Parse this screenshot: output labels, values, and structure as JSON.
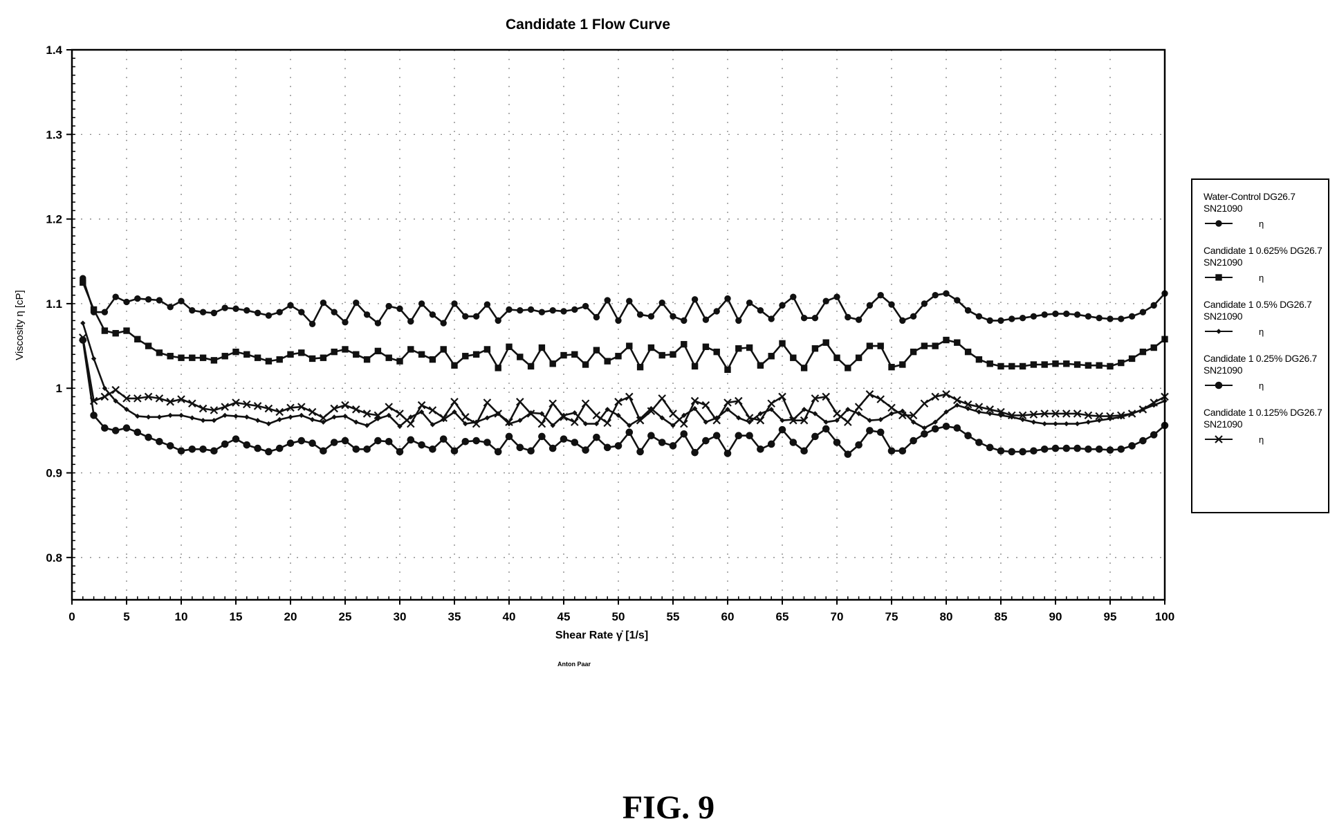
{
  "figure": {
    "label": "FIG. 9",
    "credit": "Anton Paar"
  },
  "chart_data": {
    "type": "line",
    "title": "Candidate 1 Flow Curve",
    "xlabel": "Shear Rate γ̇ [1/s]",
    "ylabel": "Viscosity η [cP]",
    "xlim": [
      0,
      100
    ],
    "ylim": [
      0.75,
      1.4
    ],
    "xticks": [
      0,
      5,
      10,
      15,
      20,
      25,
      30,
      35,
      40,
      45,
      50,
      55,
      60,
      65,
      70,
      75,
      80,
      85,
      90,
      95,
      100
    ],
    "yticks": [
      0.8,
      0.9,
      1,
      1.1,
      1.2,
      1.3,
      1.4
    ],
    "ytick_labels": [
      "0.8",
      "0.9",
      "1",
      "1.1",
      "1.2",
      "1.3",
      "1.4"
    ],
    "grid": true,
    "legend_position": "right",
    "x": [
      1,
      2,
      3,
      4,
      5,
      6,
      7,
      8,
      9,
      10,
      11,
      12,
      13,
      14,
      15,
      16,
      17,
      18,
      19,
      20,
      21,
      22,
      23,
      24,
      25,
      26,
      27,
      28,
      29,
      30,
      31,
      32,
      33,
      34,
      35,
      36,
      37,
      38,
      39,
      40,
      41,
      42,
      43,
      44,
      45,
      46,
      47,
      48,
      49,
      50,
      51,
      52,
      53,
      54,
      55,
      56,
      57,
      58,
      59,
      60,
      61,
      62,
      63,
      64,
      65,
      66,
      67,
      68,
      69,
      70,
      71,
      72,
      73,
      74,
      75,
      76,
      77,
      78,
      79,
      80,
      81,
      82,
      83,
      84,
      85,
      86,
      87,
      88,
      89,
      90,
      91,
      92,
      93,
      94,
      95,
      96,
      97,
      98,
      99,
      100
    ],
    "series": [
      {
        "name": "Water-Control DG26.7 SN21090",
        "symbol_label": "η",
        "marker": "circle",
        "values": [
          1.13,
          1.09,
          1.09,
          1.108,
          1.102,
          1.106,
          1.105,
          1.104,
          1.096,
          1.103,
          1.092,
          1.09,
          1.089,
          1.095,
          1.094,
          1.092,
          1.089,
          1.086,
          1.09,
          1.098,
          1.09,
          1.076,
          1.101,
          1.09,
          1.078,
          1.101,
          1.087,
          1.077,
          1.097,
          1.094,
          1.079,
          1.1,
          1.087,
          1.077,
          1.1,
          1.085,
          1.085,
          1.099,
          1.08,
          1.093,
          1.092,
          1.093,
          1.09,
          1.092,
          1.091,
          1.093,
          1.097,
          1.084,
          1.104,
          1.08,
          1.103,
          1.087,
          1.085,
          1.101,
          1.085,
          1.08,
          1.105,
          1.081,
          1.091,
          1.106,
          1.08,
          1.101,
          1.092,
          1.082,
          1.098,
          1.108,
          1.083,
          1.083,
          1.103,
          1.108,
          1.084,
          1.081,
          1.098,
          1.11,
          1.099,
          1.08,
          1.085,
          1.1,
          1.11,
          1.112,
          1.104,
          1.092,
          1.085,
          1.08,
          1.08,
          1.082,
          1.083,
          1.085,
          1.087,
          1.088,
          1.088,
          1.087,
          1.085,
          1.083,
          1.082,
          1.082,
          1.085,
          1.09,
          1.098,
          1.112
        ]
      },
      {
        "name": "Candidate 1 0.625% DG26.7 SN21090",
        "symbol_label": "η",
        "marker": "square",
        "values": [
          1.125,
          1.093,
          1.068,
          1.065,
          1.068,
          1.058,
          1.05,
          1.042,
          1.038,
          1.036,
          1.036,
          1.036,
          1.033,
          1.038,
          1.043,
          1.04,
          1.036,
          1.032,
          1.034,
          1.04,
          1.042,
          1.035,
          1.036,
          1.043,
          1.046,
          1.04,
          1.034,
          1.044,
          1.036,
          1.032,
          1.046,
          1.04,
          1.034,
          1.046,
          1.027,
          1.038,
          1.04,
          1.046,
          1.024,
          1.049,
          1.037,
          1.026,
          1.048,
          1.029,
          1.039,
          1.04,
          1.028,
          1.045,
          1.032,
          1.038,
          1.05,
          1.025,
          1.048,
          1.039,
          1.04,
          1.052,
          1.026,
          1.049,
          1.043,
          1.022,
          1.047,
          1.048,
          1.027,
          1.038,
          1.053,
          1.036,
          1.024,
          1.047,
          1.054,
          1.036,
          1.024,
          1.036,
          1.05,
          1.05,
          1.025,
          1.028,
          1.043,
          1.05,
          1.05,
          1.057,
          1.054,
          1.043,
          1.034,
          1.029,
          1.026,
          1.026,
          1.026,
          1.028,
          1.028,
          1.029,
          1.029,
          1.028,
          1.027,
          1.027,
          1.026,
          1.03,
          1.035,
          1.043,
          1.048,
          1.058
        ]
      },
      {
        "name": "Candidate 1 0.5% DG26.7 SN21090",
        "symbol_label": "η",
        "marker": "diamond",
        "values": [
          1.077,
          1.035,
          1.0,
          0.985,
          0.975,
          0.967,
          0.966,
          0.966,
          0.968,
          0.968,
          0.965,
          0.962,
          0.962,
          0.968,
          0.967,
          0.966,
          0.962,
          0.958,
          0.963,
          0.966,
          0.968,
          0.963,
          0.96,
          0.966,
          0.967,
          0.96,
          0.956,
          0.964,
          0.968,
          0.955,
          0.966,
          0.972,
          0.957,
          0.963,
          0.972,
          0.958,
          0.96,
          0.965,
          0.97,
          0.958,
          0.962,
          0.971,
          0.97,
          0.956,
          0.968,
          0.971,
          0.958,
          0.958,
          0.975,
          0.968,
          0.956,
          0.964,
          0.976,
          0.965,
          0.956,
          0.968,
          0.976,
          0.96,
          0.965,
          0.975,
          0.965,
          0.96,
          0.97,
          0.975,
          0.962,
          0.963,
          0.975,
          0.97,
          0.96,
          0.962,
          0.975,
          0.97,
          0.962,
          0.963,
          0.97,
          0.973,
          0.96,
          0.953,
          0.96,
          0.972,
          0.98,
          0.976,
          0.972,
          0.97,
          0.968,
          0.966,
          0.963,
          0.96,
          0.958,
          0.958,
          0.958,
          0.958,
          0.96,
          0.962,
          0.964,
          0.966,
          0.97,
          0.975,
          0.98,
          0.985
        ]
      },
      {
        "name": "Candidate 1 0.25% DG26.7 SN21090",
        "symbol_label": "η",
        "marker": "circle-large",
        "values": [
          1.057,
          0.968,
          0.953,
          0.95,
          0.953,
          0.948,
          0.942,
          0.937,
          0.932,
          0.926,
          0.928,
          0.928,
          0.926,
          0.934,
          0.94,
          0.933,
          0.929,
          0.925,
          0.929,
          0.935,
          0.938,
          0.935,
          0.926,
          0.936,
          0.938,
          0.928,
          0.928,
          0.938,
          0.937,
          0.925,
          0.939,
          0.933,
          0.928,
          0.94,
          0.926,
          0.937,
          0.938,
          0.936,
          0.925,
          0.943,
          0.93,
          0.926,
          0.943,
          0.929,
          0.94,
          0.936,
          0.927,
          0.942,
          0.93,
          0.932,
          0.948,
          0.925,
          0.944,
          0.936,
          0.932,
          0.946,
          0.924,
          0.938,
          0.944,
          0.923,
          0.944,
          0.944,
          0.928,
          0.934,
          0.951,
          0.936,
          0.926,
          0.943,
          0.952,
          0.936,
          0.922,
          0.933,
          0.95,
          0.948,
          0.926,
          0.926,
          0.938,
          0.946,
          0.952,
          0.955,
          0.953,
          0.944,
          0.936,
          0.93,
          0.926,
          0.925,
          0.925,
          0.926,
          0.928,
          0.929,
          0.929,
          0.929,
          0.928,
          0.928,
          0.927,
          0.928,
          0.932,
          0.938,
          0.945,
          0.956
        ]
      },
      {
        "name": "Candidate 1 0.125% DG26.7 SN21090",
        "symbol_label": "η",
        "marker": "cross",
        "values": [
          1.06,
          0.985,
          0.99,
          0.998,
          0.988,
          0.988,
          0.99,
          0.988,
          0.984,
          0.987,
          0.982,
          0.976,
          0.974,
          0.978,
          0.983,
          0.981,
          0.979,
          0.976,
          0.972,
          0.977,
          0.978,
          0.972,
          0.965,
          0.976,
          0.98,
          0.975,
          0.97,
          0.968,
          0.978,
          0.97,
          0.958,
          0.98,
          0.974,
          0.965,
          0.984,
          0.966,
          0.958,
          0.983,
          0.97,
          0.96,
          0.984,
          0.97,
          0.958,
          0.982,
          0.966,
          0.96,
          0.982,
          0.968,
          0.959,
          0.984,
          0.99,
          0.962,
          0.973,
          0.988,
          0.97,
          0.958,
          0.985,
          0.98,
          0.962,
          0.983,
          0.985,
          0.965,
          0.962,
          0.982,
          0.99,
          0.962,
          0.962,
          0.988,
          0.99,
          0.97,
          0.96,
          0.978,
          0.993,
          0.987,
          0.977,
          0.968,
          0.968,
          0.982,
          0.99,
          0.993,
          0.986,
          0.981,
          0.978,
          0.975,
          0.972,
          0.968,
          0.968,
          0.969,
          0.97,
          0.97,
          0.97,
          0.97,
          0.968,
          0.967,
          0.967,
          0.968,
          0.97,
          0.975,
          0.983,
          0.99
        ]
      }
    ]
  }
}
